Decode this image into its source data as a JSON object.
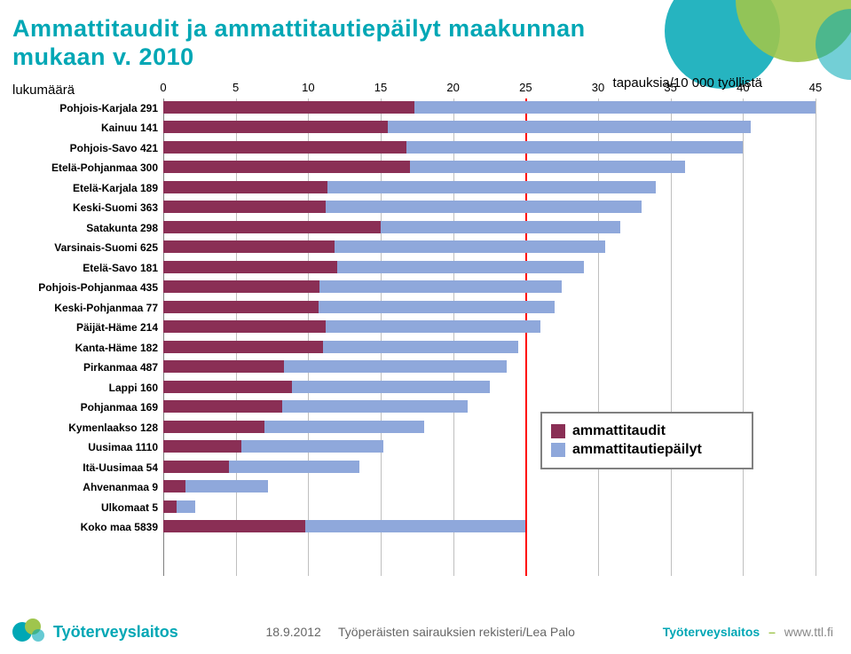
{
  "title": "Ammattitaudit ja ammattitautiepäilyt maakunnan mukaan v. 2010",
  "axis": {
    "ylabel": "lukumäärä",
    "xlabel": "tapauksia/10 000 työllistä",
    "xmin": 0,
    "xmax": 45,
    "xtick_step": 5,
    "reference_value": 25,
    "grid_color": "#bfbfbf",
    "ref_color": "#ff0000"
  },
  "colors": {
    "ammattitaudit": "#8a2f55",
    "epailyt": "#8fa8db",
    "background": "#ffffff",
    "text": "#000000"
  },
  "legend": {
    "items": [
      {
        "label": "ammattitaudit",
        "color": "#8a2f55"
      },
      {
        "label": "ammattitautiepäilyt",
        "color": "#8fa8db"
      }
    ]
  },
  "rows": [
    {
      "label": "Pohjois-Karjala 291",
      "total": 45.0,
      "part": 17.3
    },
    {
      "label": "Kainuu 141",
      "total": 40.5,
      "part": 15.5
    },
    {
      "label": "Pohjois-Savo 421",
      "total": 40.0,
      "part": 16.8
    },
    {
      "label": "Etelä-Pohjanmaa 300",
      "total": 36.0,
      "part": 17.0
    },
    {
      "label": "Etelä-Karjala 189",
      "total": 34.0,
      "part": 11.3
    },
    {
      "label": "Keski-Suomi 363",
      "total": 33.0,
      "part": 11.2
    },
    {
      "label": "Satakunta 298",
      "total": 31.5,
      "part": 15.0
    },
    {
      "label": "Varsinais-Suomi 625",
      "total": 30.5,
      "part": 11.8
    },
    {
      "label": "Etelä-Savo 181",
      "total": 29.0,
      "part": 12.0
    },
    {
      "label": "Pohjois-Pohjanmaa 435",
      "total": 27.5,
      "part": 10.8
    },
    {
      "label": "Keski-Pohjanmaa 77",
      "total": 27.0,
      "part": 10.7
    },
    {
      "label": "Päijät-Häme 214",
      "total": 26.0,
      "part": 11.2
    },
    {
      "label": "Kanta-Häme 182",
      "total": 24.5,
      "part": 11.0
    },
    {
      "label": "Pirkanmaa 487",
      "total": 23.7,
      "part": 8.3
    },
    {
      "label": "Lappi 160",
      "total": 22.5,
      "part": 8.9
    },
    {
      "label": "Pohjanmaa 169",
      "total": 21.0,
      "part": 8.2
    },
    {
      "label": "Kymenlaakso 128",
      "total": 18.0,
      "part": 7.0
    },
    {
      "label": "Uusimaa 1110",
      "total": 15.2,
      "part": 5.4
    },
    {
      "label": "Itä-Uusimaa 54",
      "total": 13.5,
      "part": 4.5
    },
    {
      "label": "Ahvenanmaa 9",
      "total": 7.2,
      "part": 1.5
    },
    {
      "label": "Ulkomaat 5",
      "total": 2.2,
      "part": 0.9
    },
    {
      "label": "Koko maa 5839",
      "total": 25.0,
      "part": 9.8
    }
  ],
  "footer": {
    "date": "18.9.2012",
    "source": "Työperäisten sairauksien rekisteri/Lea Palo",
    "brand": "Työterveyslaitos",
    "url": "www.ttl.fi",
    "logo_text": "Työterveyslaitos"
  }
}
